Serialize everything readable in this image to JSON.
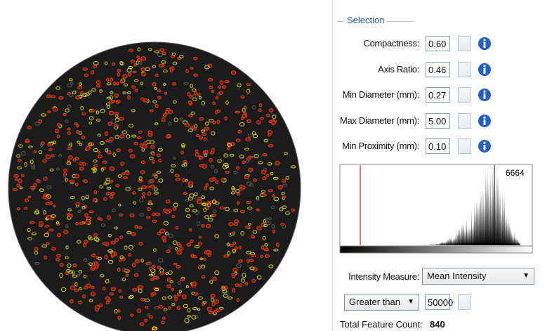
{
  "selection": {
    "title": "Selection",
    "fields": [
      {
        "label": "Compactness:",
        "value": "0.60"
      },
      {
        "label": "Axis Ratio:",
        "value": "0.46"
      },
      {
        "label": "Min Diameter (mm):",
        "value": "0.27"
      },
      {
        "label": "Max Diameter (mm):",
        "value": "5.00"
      },
      {
        "label": "Min Proximity (mm):",
        "value": "0.10"
      }
    ]
  },
  "histogram": {
    "max_label": "6664"
  },
  "intensity": {
    "label": "Intensity Measure:",
    "value": "Mean Intensity"
  },
  "threshold": {
    "comparison": "Greater than",
    "value": "50000"
  },
  "total": {
    "label": "Total Feature Count:",
    "value": "840"
  }
}
